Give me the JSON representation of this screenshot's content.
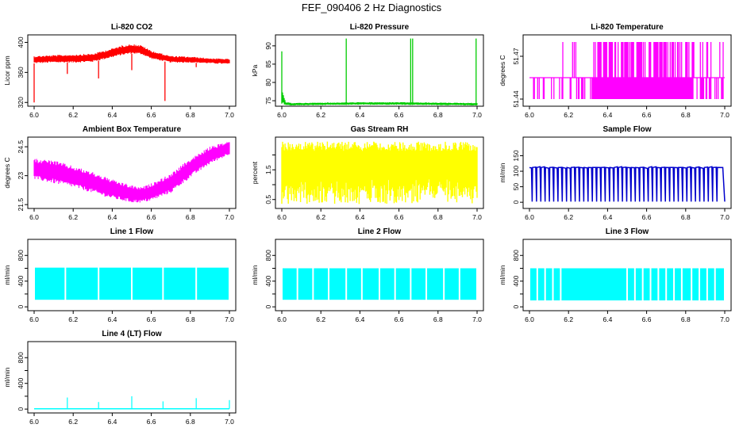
{
  "title": "FEF_090406  2 Hz Diagnostics",
  "chart_data": [
    {
      "type": "line",
      "title": "Li-820 CO2",
      "ylabel": "Licor ppm",
      "color": "#ff0000",
      "xlim": [
        6.0,
        7.0
      ],
      "xticks": [
        "6.0",
        "6.2",
        "6.4",
        "6.6",
        "6.8",
        "7.0"
      ],
      "ylim": [
        315,
        410
      ],
      "yticks": [
        320,
        360,
        400
      ],
      "style": "band",
      "x": [
        6.0,
        6.1,
        6.2,
        6.3,
        6.4,
        6.45,
        6.5,
        6.55,
        6.6,
        6.7,
        6.8,
        6.9,
        7.0
      ],
      "y_low": [
        372,
        373,
        373,
        374,
        380,
        383,
        385,
        384,
        378,
        373,
        373,
        372,
        371
      ],
      "y_high": [
        382,
        383,
        384,
        385,
        392,
        396,
        398,
        396,
        389,
        382,
        381,
        379,
        378
      ],
      "spikes": [
        {
          "x": 6.0,
          "y": 320
        },
        {
          "x": 6.17,
          "y": 358
        },
        {
          "x": 6.33,
          "y": 352
        },
        {
          "x": 6.5,
          "y": 363
        },
        {
          "x": 6.67,
          "y": 322
        },
        {
          "x": 6.83,
          "y": 367
        }
      ]
    },
    {
      "type": "line",
      "title": "Li-820 Pressure",
      "ylabel": "kPa",
      "color": "#00cc00",
      "xlim": [
        6.0,
        7.0
      ],
      "xticks": [
        "6.0",
        "6.2",
        "6.4",
        "6.6",
        "6.8",
        "7.0"
      ],
      "ylim": [
        73.5,
        93
      ],
      "yticks": [
        75,
        80,
        85,
        90
      ],
      "style": "band",
      "x": [
        6.0,
        6.02,
        6.05,
        6.2,
        6.4,
        6.6,
        6.8,
        7.0
      ],
      "y_low": [
        74.2,
        73.8,
        73.7,
        73.8,
        73.9,
        73.9,
        73.8,
        73.7
      ],
      "y_high": [
        78,
        74.6,
        74.4,
        74.5,
        74.6,
        74.6,
        74.5,
        74.4
      ],
      "spikes": [
        {
          "x": 6.0,
          "y": 88.5
        },
        {
          "x": 6.33,
          "y": 92
        },
        {
          "x": 6.66,
          "y": 92
        },
        {
          "x": 6.67,
          "y": 92
        },
        {
          "x": 6.995,
          "y": 92
        }
      ]
    },
    {
      "type": "line",
      "title": "Li-820 Temperature",
      "ylabel": "degrees C",
      "color": "#ff00ff",
      "xlim": [
        6.0,
        7.0
      ],
      "xticks": [
        "6.0",
        "6.2",
        "6.4",
        "6.6",
        "6.8",
        "7.0"
      ],
      "ylim": [
        51.435,
        51.485
      ],
      "yticks": [
        51.44,
        51.47
      ],
      "yticklabels": [
        "51.44",
        "51.47"
      ],
      "style": "twolevel",
      "levels": [
        51.44,
        51.455,
        51.48
      ],
      "dense_ranges": [
        [
          6.32,
          6.84
        ]
      ]
    },
    {
      "type": "line",
      "title": "Ambient Box Temperature",
      "ylabel": "degrees C",
      "color": "#ff00ff",
      "xlim": [
        6.0,
        7.0
      ],
      "xticks": [
        "6.0",
        "6.2",
        "6.4",
        "6.6",
        "6.8",
        "7.0"
      ],
      "ylim": [
        21.3,
        25.0
      ],
      "yticks": [
        21.5,
        23.0,
        24.5
      ],
      "style": "band",
      "x": [
        6.0,
        6.1,
        6.2,
        6.3,
        6.4,
        6.5,
        6.55,
        6.6,
        6.7,
        6.8,
        6.9,
        7.0
      ],
      "y_low": [
        22.8,
        22.6,
        22.4,
        22.1,
        21.8,
        21.6,
        21.6,
        21.7,
        22.1,
        22.9,
        23.6,
        24.1
      ],
      "y_high": [
        23.9,
        23.8,
        23.5,
        23.2,
        22.8,
        22.5,
        22.4,
        22.6,
        23.1,
        23.9,
        24.5,
        24.8
      ]
    },
    {
      "type": "line",
      "title": "Gas Stream RH",
      "ylabel": "percent",
      "color": "#ffff00",
      "xlim": [
        6.0,
        7.0
      ],
      "xticks": [
        "6.0",
        "6.2",
        "6.4",
        "6.6",
        "6.8",
        "7.0"
      ],
      "ylim": [
        0.2,
        2.6
      ],
      "yticks": [
        0.5,
        1.0,
        1.5,
        2.0
      ],
      "yticklabels": [
        "0.5",
        "",
        "1.5",
        ""
      ],
      "style": "noise",
      "x": [
        6.0,
        7.0
      ],
      "y_low": [
        0.35,
        0.35
      ],
      "y_high": [
        2.45,
        2.45
      ],
      "dense_low": 1.3
    },
    {
      "type": "line",
      "title": "Sample Flow",
      "ylabel": "ml/min",
      "color": "#0000cc",
      "xlim": [
        6.0,
        7.0
      ],
      "xticks": [
        "6.0",
        "6.2",
        "6.4",
        "6.6",
        "6.8",
        "7.0"
      ],
      "ylim": [
        -20,
        210
      ],
      "yticks": [
        0,
        50,
        100,
        150
      ],
      "style": "pulses",
      "high": 112,
      "low": 2,
      "count": 44
    },
    {
      "type": "line",
      "title": "Line 1 Flow",
      "ylabel": "ml/min",
      "color": "#00ffff",
      "xlim": [
        6.0,
        7.0
      ],
      "xticks": [
        "6.0",
        "6.2",
        "6.4",
        "6.6",
        "6.8",
        "7.0"
      ],
      "ylim": [
        -60,
        1050
      ],
      "yticks": [
        0,
        200,
        400,
        600,
        800
      ],
      "yticklabels": [
        "0",
        "",
        "400",
        "",
        "800"
      ],
      "style": "block",
      "low": 110,
      "high": 610,
      "gaps": [
        6.16,
        6.33,
        6.5,
        6.66,
        6.83,
        7.0
      ]
    },
    {
      "type": "line",
      "title": "Line 2 Flow",
      "ylabel": "ml/min",
      "color": "#00ffff",
      "xlim": [
        6.0,
        7.0
      ],
      "xticks": [
        "6.0",
        "6.2",
        "6.4",
        "6.6",
        "6.8",
        "7.0"
      ],
      "ylim": [
        -60,
        1050
      ],
      "yticks": [
        0,
        200,
        400,
        600,
        800
      ],
      "yticklabels": [
        "0",
        "",
        "400",
        "",
        "800"
      ],
      "style": "block",
      "low": 110,
      "high": 600,
      "gaps": [
        6.08,
        6.16,
        6.24,
        6.33,
        6.41,
        6.5,
        6.58,
        6.66,
        6.74,
        6.83,
        6.91,
        7.0
      ]
    },
    {
      "type": "line",
      "title": "Line 3 Flow",
      "ylabel": "ml/min",
      "color": "#00ffff",
      "xlim": [
        6.0,
        7.0
      ],
      "xticks": [
        "6.0",
        "6.2",
        "6.4",
        "6.6",
        "6.8",
        "7.0"
      ],
      "ylim": [
        -60,
        1050
      ],
      "yticks": [
        0,
        200,
        400,
        600,
        800
      ],
      "yticklabels": [
        "0",
        "",
        "400",
        "",
        "800"
      ],
      "style": "block",
      "low": 100,
      "high": 600,
      "gaps": [
        6.04,
        6.08,
        6.12,
        6.16,
        6.5,
        6.54,
        6.58,
        6.62,
        6.66,
        6.7,
        6.74,
        6.78,
        6.83,
        6.87,
        6.91,
        6.95,
        7.0
      ]
    },
    {
      "type": "line",
      "title": "Line 4 (LT) Flow",
      "ylabel": "ml/min",
      "color": "#00ffff",
      "xlim": [
        6.0,
        7.0
      ],
      "xticks": [
        "6.0",
        "6.2",
        "6.4",
        "6.6",
        "6.8",
        "7.0"
      ],
      "ylim": [
        -60,
        1050
      ],
      "yticks": [
        0,
        200,
        400,
        600,
        800
      ],
      "yticklabels": [
        "0",
        "",
        "400",
        "",
        "800"
      ],
      "style": "baseline",
      "base": 5,
      "spikes": [
        {
          "x": 6.17,
          "y": 180
        },
        {
          "x": 6.33,
          "y": 110
        },
        {
          "x": 6.5,
          "y": 200
        },
        {
          "x": 6.66,
          "y": 120
        },
        {
          "x": 6.83,
          "y": 170
        },
        {
          "x": 7.0,
          "y": 140
        }
      ]
    }
  ]
}
